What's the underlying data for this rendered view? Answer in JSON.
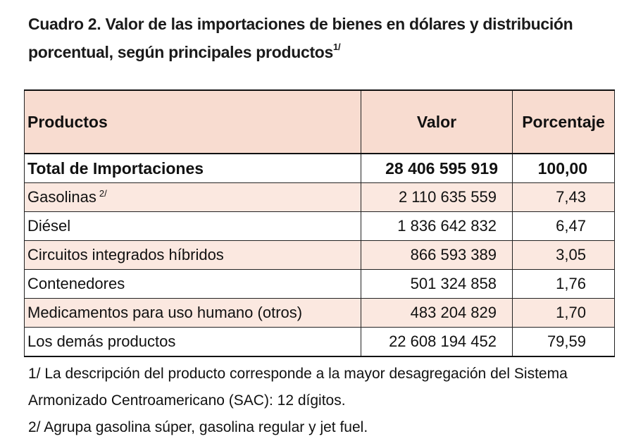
{
  "title": {
    "text": "Cuadro 2. Valor de las importaciones de bienes en dólares y distribución porcentual, según principales productos",
    "footnote_mark": "1/"
  },
  "table": {
    "headers": {
      "product": "Productos",
      "value": "Valor",
      "percent": "Porcentaje"
    },
    "total": {
      "label": "Total de Importaciones",
      "value": "28 406 595 919",
      "percent": "100,00"
    },
    "rows": [
      {
        "label": "Gasolinas",
        "note": "2/",
        "value": "2 110 635 559",
        "percent": "7,43"
      },
      {
        "label": "Diésel",
        "value": "1 836 642 832",
        "percent": "6,47"
      },
      {
        "label": "Circuitos integrados híbridos",
        "value": "866 593 389",
        "percent": "3,05"
      },
      {
        "label": "Contenedores",
        "value": "501 324 858",
        "percent": "1,76"
      },
      {
        "label": "Medicamentos para uso humano (otros)",
        "value": "483 204 829",
        "percent": "1,70"
      },
      {
        "label": "Los demás productos",
        "value": "22 608 194 452",
        "percent": "79,59"
      }
    ]
  },
  "notes": [
    "1/ La descripción del producto corresponde a la mayor desagregación del Sistema Armonizado Centroamericano (SAC): 12 dígitos.",
    "2/ Agrupa gasolina súper, gasolina regular y jet fuel."
  ],
  "colors": {
    "header_fill": "#f8dcd0",
    "shaded_row_fill": "#fbe8e0",
    "border": "#222222"
  }
}
